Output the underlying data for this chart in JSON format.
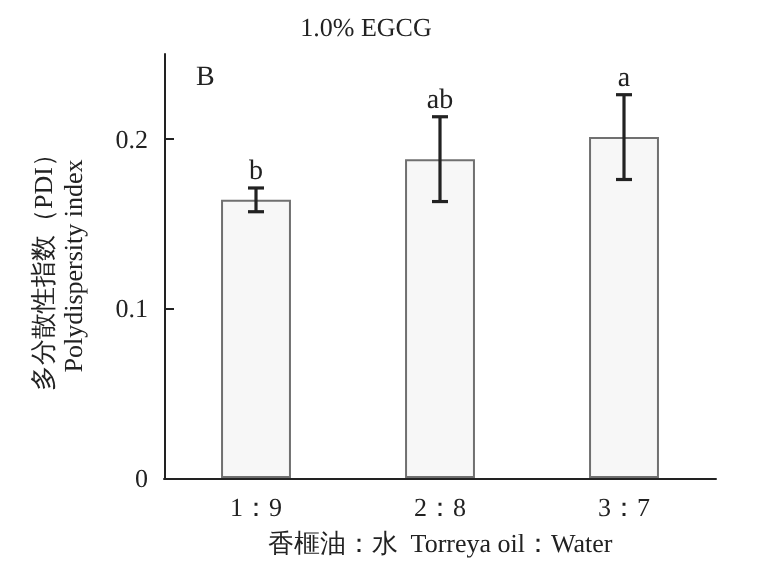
{
  "chart_data": {
    "type": "bar",
    "title": "1.0% EGCG",
    "xlabel": "香榧油：水  Torreya oil：Water",
    "ylabel": "多分散性指数（PDI）\nPolydispersity index",
    "categories": [
      "1：9",
      "2：8",
      "3：7"
    ],
    "values": [
      0.164,
      0.188,
      0.201
    ],
    "errors": [
      0.007,
      0.025,
      0.025
    ],
    "color": "#f7f7f7",
    "ylim": [
      0,
      0.25
    ],
    "yticks": [
      0,
      0.1,
      0.2
    ],
    "annotations": [
      "B",
      {
        "text": "b",
        "x": "1：9",
        "y": 0.171
      },
      {
        "text": "ab",
        "x": "2：8",
        "y": 0.213
      },
      {
        "text": "a",
        "x": "3：7",
        "y": 0.226
      }
    ]
  }
}
